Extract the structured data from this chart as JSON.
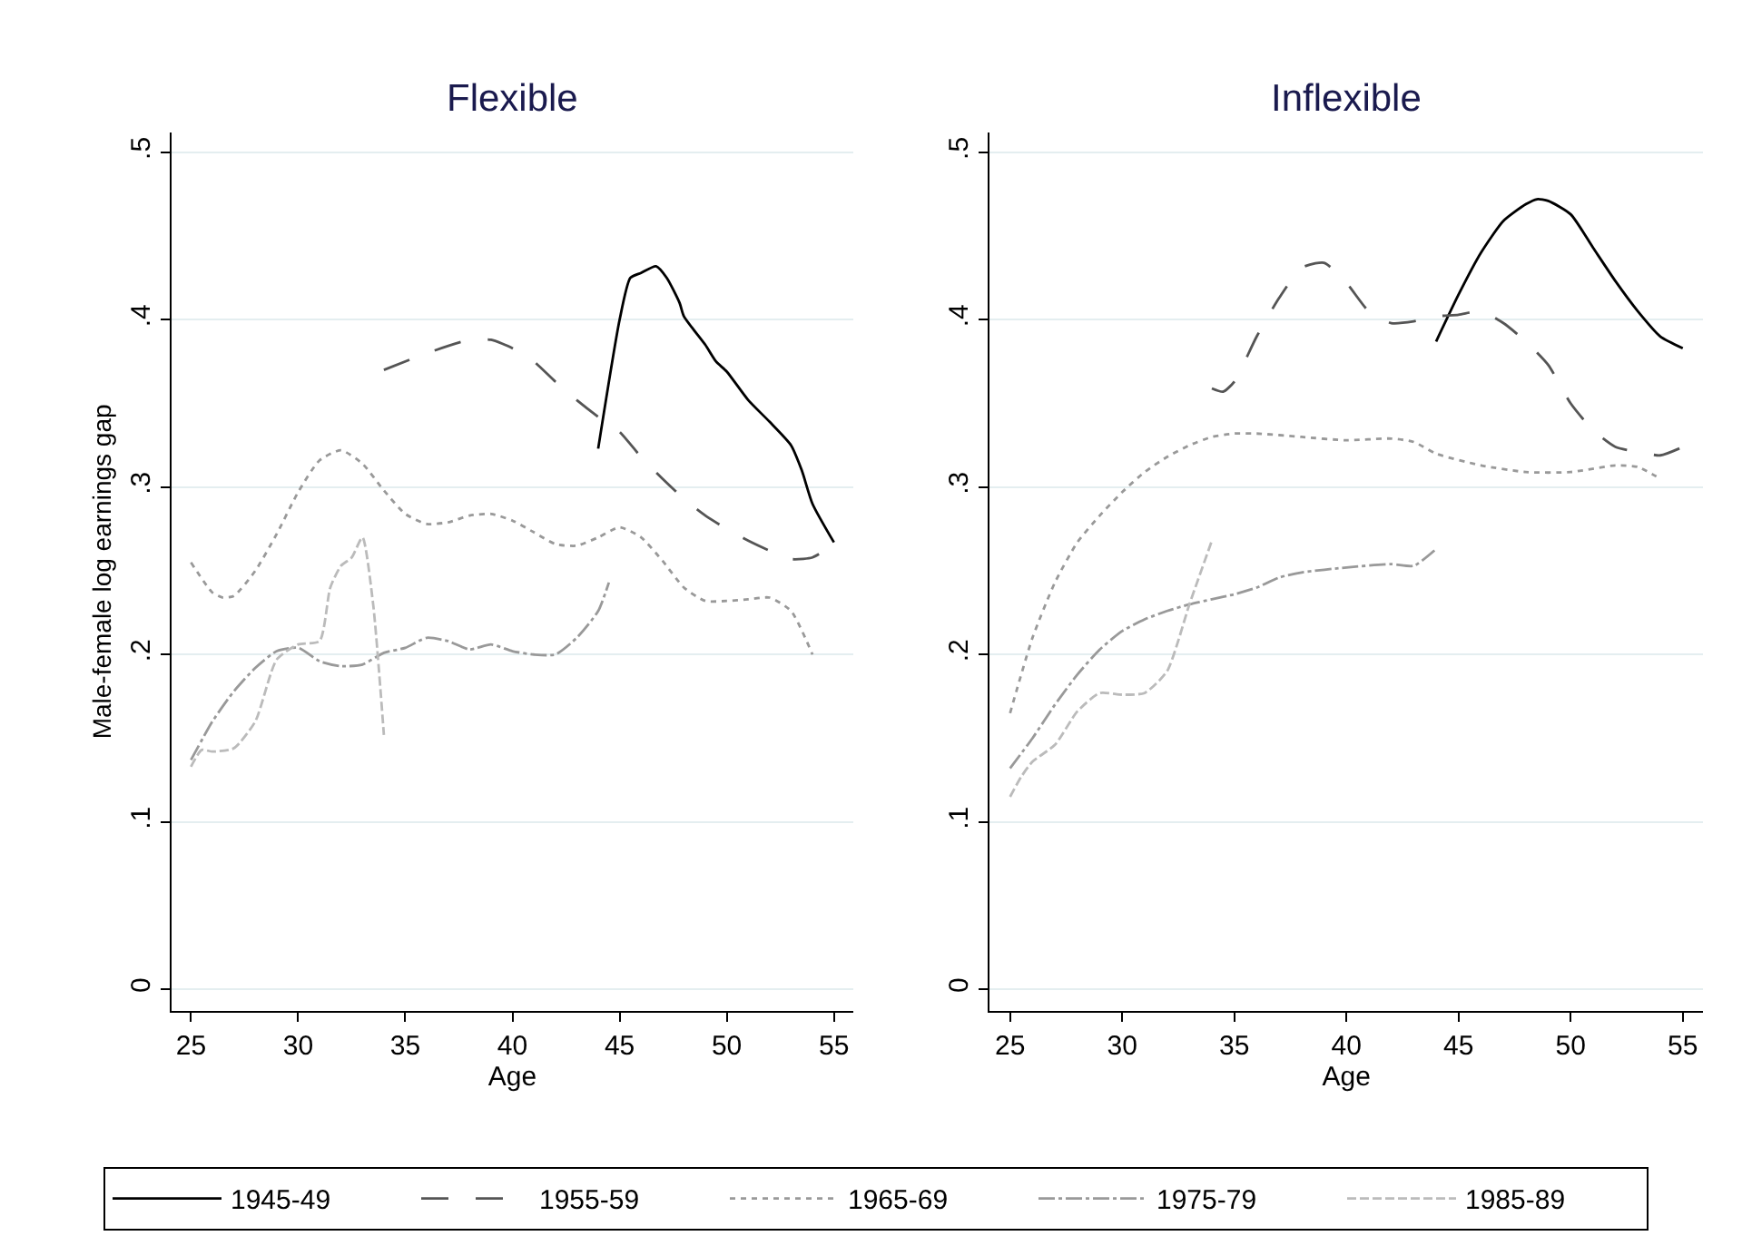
{
  "chart_data": [
    {
      "type": "line",
      "title": "Flexible",
      "xlabel": "Age",
      "ylabel": "Male-female log earnings gap",
      "xlim": [
        24.1,
        55.9
      ],
      "xticks": [
        25,
        30,
        35,
        40,
        45,
        50,
        55
      ],
      "ylim": [
        -0.013,
        0.512
      ],
      "yticks": [
        0,
        {
          "value": 0.1,
          "label": ".1"
        },
        {
          "value": 0.2,
          "label": ".2"
        },
        {
          "value": 0.3,
          "label": ".3"
        },
        {
          "value": 0.4,
          "label": ".4"
        },
        {
          "value": 0.5,
          "label": ".5"
        }
      ],
      "grid": "y",
      "legend": "bottom",
      "series": [
        {
          "name": "1945-49",
          "color": "#000000",
          "line_style": "solid",
          "x": [
            44,
            45,
            45.5,
            46,
            46.7,
            47.2,
            47.8,
            48,
            49,
            49.5,
            50,
            51,
            52,
            53,
            53.5,
            54,
            55
          ],
          "values": [
            0.323,
            0.4,
            0.425,
            0.428,
            0.432,
            0.425,
            0.41,
            0.402,
            0.385,
            0.375,
            0.369,
            0.352,
            0.339,
            0.325,
            0.31,
            0.29,
            0.267
          ]
        },
        {
          "name": "1955-59",
          "color": "#555555",
          "line_style": "long_dashed",
          "x": [
            34,
            36,
            38,
            39,
            40,
            41,
            42,
            43,
            44,
            45,
            46,
            47,
            48,
            49,
            50,
            51,
            52,
            53,
            54,
            55
          ],
          "values": [
            0.37,
            0.38,
            0.388,
            0.388,
            0.383,
            0.375,
            0.363,
            0.352,
            0.342,
            0.333,
            0.318,
            0.305,
            0.293,
            0.283,
            0.275,
            0.268,
            0.262,
            0.257,
            0.258,
            0.266
          ]
        },
        {
          "name": "1965-69",
          "color": "#999999",
          "line_style": "dotted",
          "x": [
            25,
            26,
            26.5,
            27,
            28,
            29,
            30,
            31,
            32,
            33,
            34,
            35,
            36,
            37,
            38,
            39,
            40,
            41,
            42,
            43,
            44,
            45,
            46,
            47,
            48,
            49,
            50,
            51,
            52,
            53,
            54
          ],
          "values": [
            0.255,
            0.237,
            0.234,
            0.235,
            0.25,
            0.272,
            0.297,
            0.316,
            0.322,
            0.314,
            0.298,
            0.284,
            0.278,
            0.279,
            0.283,
            0.284,
            0.28,
            0.273,
            0.266,
            0.265,
            0.27,
            0.276,
            0.27,
            0.256,
            0.24,
            0.232,
            0.232,
            0.233,
            0.234,
            0.226,
            0.2
          ]
        },
        {
          "name": "1975-79",
          "color": "#999999",
          "line_style": "dashdot",
          "x": [
            25,
            26,
            27,
            28,
            29,
            30,
            31,
            32,
            33,
            34,
            35,
            36,
            37,
            38,
            39,
            40,
            41,
            42,
            43,
            44,
            44.5
          ],
          "values": [
            0.137,
            0.16,
            0.178,
            0.192,
            0.202,
            0.204,
            0.196,
            0.193,
            0.194,
            0.201,
            0.204,
            0.21,
            0.208,
            0.203,
            0.206,
            0.202,
            0.2,
            0.2,
            0.21,
            0.226,
            0.243
          ]
        },
        {
          "name": "1985-89",
          "color": "#bbbbbb",
          "line_style": "dashed",
          "x": [
            25,
            25.5,
            26,
            27,
            28,
            29,
            30,
            31,
            31.5,
            32,
            32.5,
            33,
            33.5,
            34
          ],
          "values": [
            0.133,
            0.143,
            0.142,
            0.144,
            0.16,
            0.197,
            0.206,
            0.208,
            0.24,
            0.253,
            0.258,
            0.27,
            0.23,
            0.152
          ]
        }
      ]
    },
    {
      "type": "line",
      "title": "Inflexible",
      "xlabel": "Age",
      "xlim": [
        24.1,
        55.9
      ],
      "xticks": [
        25,
        30,
        35,
        40,
        45,
        50,
        55
      ],
      "ylim": [
        -0.013,
        0.512
      ],
      "yticks": [
        0,
        {
          "value": 0.1,
          "label": ".1"
        },
        {
          "value": 0.2,
          "label": ".2"
        },
        {
          "value": 0.3,
          "label": ".3"
        },
        {
          "value": 0.4,
          "label": ".4"
        },
        {
          "value": 0.5,
          "label": ".5"
        }
      ],
      "grid": "y",
      "series": [
        {
          "color": "#000000",
          "line_style": "solid",
          "x": [
            44,
            45,
            46,
            47,
            48,
            48.5,
            49,
            50,
            51,
            52,
            53,
            54,
            55
          ],
          "values": [
            0.387,
            0.415,
            0.44,
            0.459,
            0.469,
            0.472,
            0.471,
            0.463,
            0.443,
            0.423,
            0.405,
            0.39,
            0.383
          ]
        },
        {
          "color": "#555555",
          "line_style": "long_dashed",
          "x": [
            34,
            34.5,
            35,
            36,
            37,
            38,
            39,
            40,
            41,
            42,
            43,
            44,
            45,
            46,
            47,
            48,
            49,
            50,
            51,
            52,
            53,
            54,
            55
          ],
          "values": [
            0.359,
            0.357,
            0.363,
            0.39,
            0.413,
            0.431,
            0.434,
            0.422,
            0.405,
            0.398,
            0.399,
            0.402,
            0.403,
            0.405,
            0.398,
            0.387,
            0.373,
            0.35,
            0.334,
            0.324,
            0.321,
            0.319,
            0.324
          ]
        },
        {
          "color": "#999999",
          "line_style": "dotted",
          "x": [
            25,
            26,
            27,
            28,
            29,
            30,
            31,
            32,
            33,
            34,
            35,
            36,
            38,
            40,
            42,
            43,
            44,
            46,
            48,
            50,
            52,
            53,
            54
          ],
          "values": [
            0.165,
            0.21,
            0.243,
            0.267,
            0.283,
            0.297,
            0.309,
            0.318,
            0.325,
            0.33,
            0.332,
            0.332,
            0.33,
            0.328,
            0.329,
            0.327,
            0.32,
            0.313,
            0.309,
            0.309,
            0.313,
            0.312,
            0.305
          ]
        },
        {
          "color": "#999999",
          "line_style": "dashdot",
          "x": [
            25,
            26,
            27,
            28,
            29,
            30,
            31,
            32,
            33,
            34,
            35,
            36,
            37,
            38,
            40,
            42,
            43,
            44
          ],
          "values": [
            0.132,
            0.15,
            0.17,
            0.188,
            0.203,
            0.214,
            0.221,
            0.226,
            0.23,
            0.233,
            0.236,
            0.24,
            0.246,
            0.249,
            0.252,
            0.254,
            0.253,
            0.263
          ]
        },
        {
          "color": "#bbbbbb",
          "line_style": "dashed",
          "x": [
            25,
            25.5,
            26,
            27,
            28,
            29,
            30,
            31,
            32,
            33,
            34
          ],
          "values": [
            0.115,
            0.127,
            0.136,
            0.146,
            0.166,
            0.177,
            0.176,
            0.177,
            0.19,
            0.23,
            0.268
          ]
        }
      ]
    }
  ]
}
